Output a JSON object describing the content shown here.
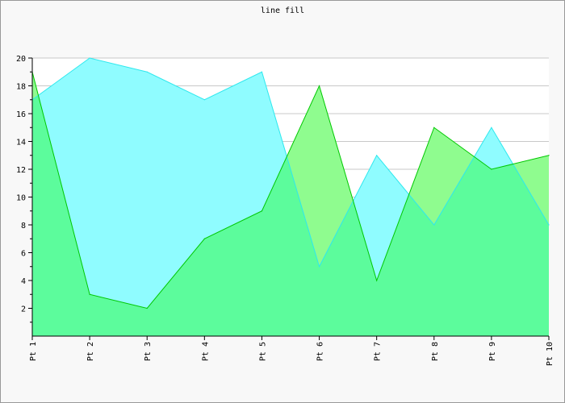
{
  "chart_data": {
    "type": "area",
    "title": "line fill",
    "categories": [
      "Pt 1",
      "Pt 2",
      "Pt 3",
      "Pt 4",
      "Pt 5",
      "Pt 6",
      "Pt 7",
      "Pt 8",
      "Pt 9",
      "Pt 10"
    ],
    "series": [
      {
        "values": [
          17,
          20,
          19,
          17,
          19,
          5,
          13,
          8,
          15,
          8
        ],
        "fill": "#8ffcff",
        "stroke": "#2ee8ee"
      },
      {
        "values": [
          19,
          3,
          2,
          7,
          9,
          18,
          4,
          15,
          12,
          13
        ],
        "fill": "#8ffc8f",
        "stroke": "#00c800"
      }
    ],
    "overlap_fill": "#5cfc9c",
    "ylim": [
      0,
      20
    ],
    "yticks": [
      2,
      4,
      6,
      8,
      10,
      12,
      14,
      16,
      18,
      20
    ],
    "grid": true,
    "xlabel": "",
    "ylabel": "",
    "colors": {
      "background": "#f8f8f8",
      "plot_background": "#ffffff",
      "grid": "#c8c8c8",
      "border": "#999999"
    }
  }
}
